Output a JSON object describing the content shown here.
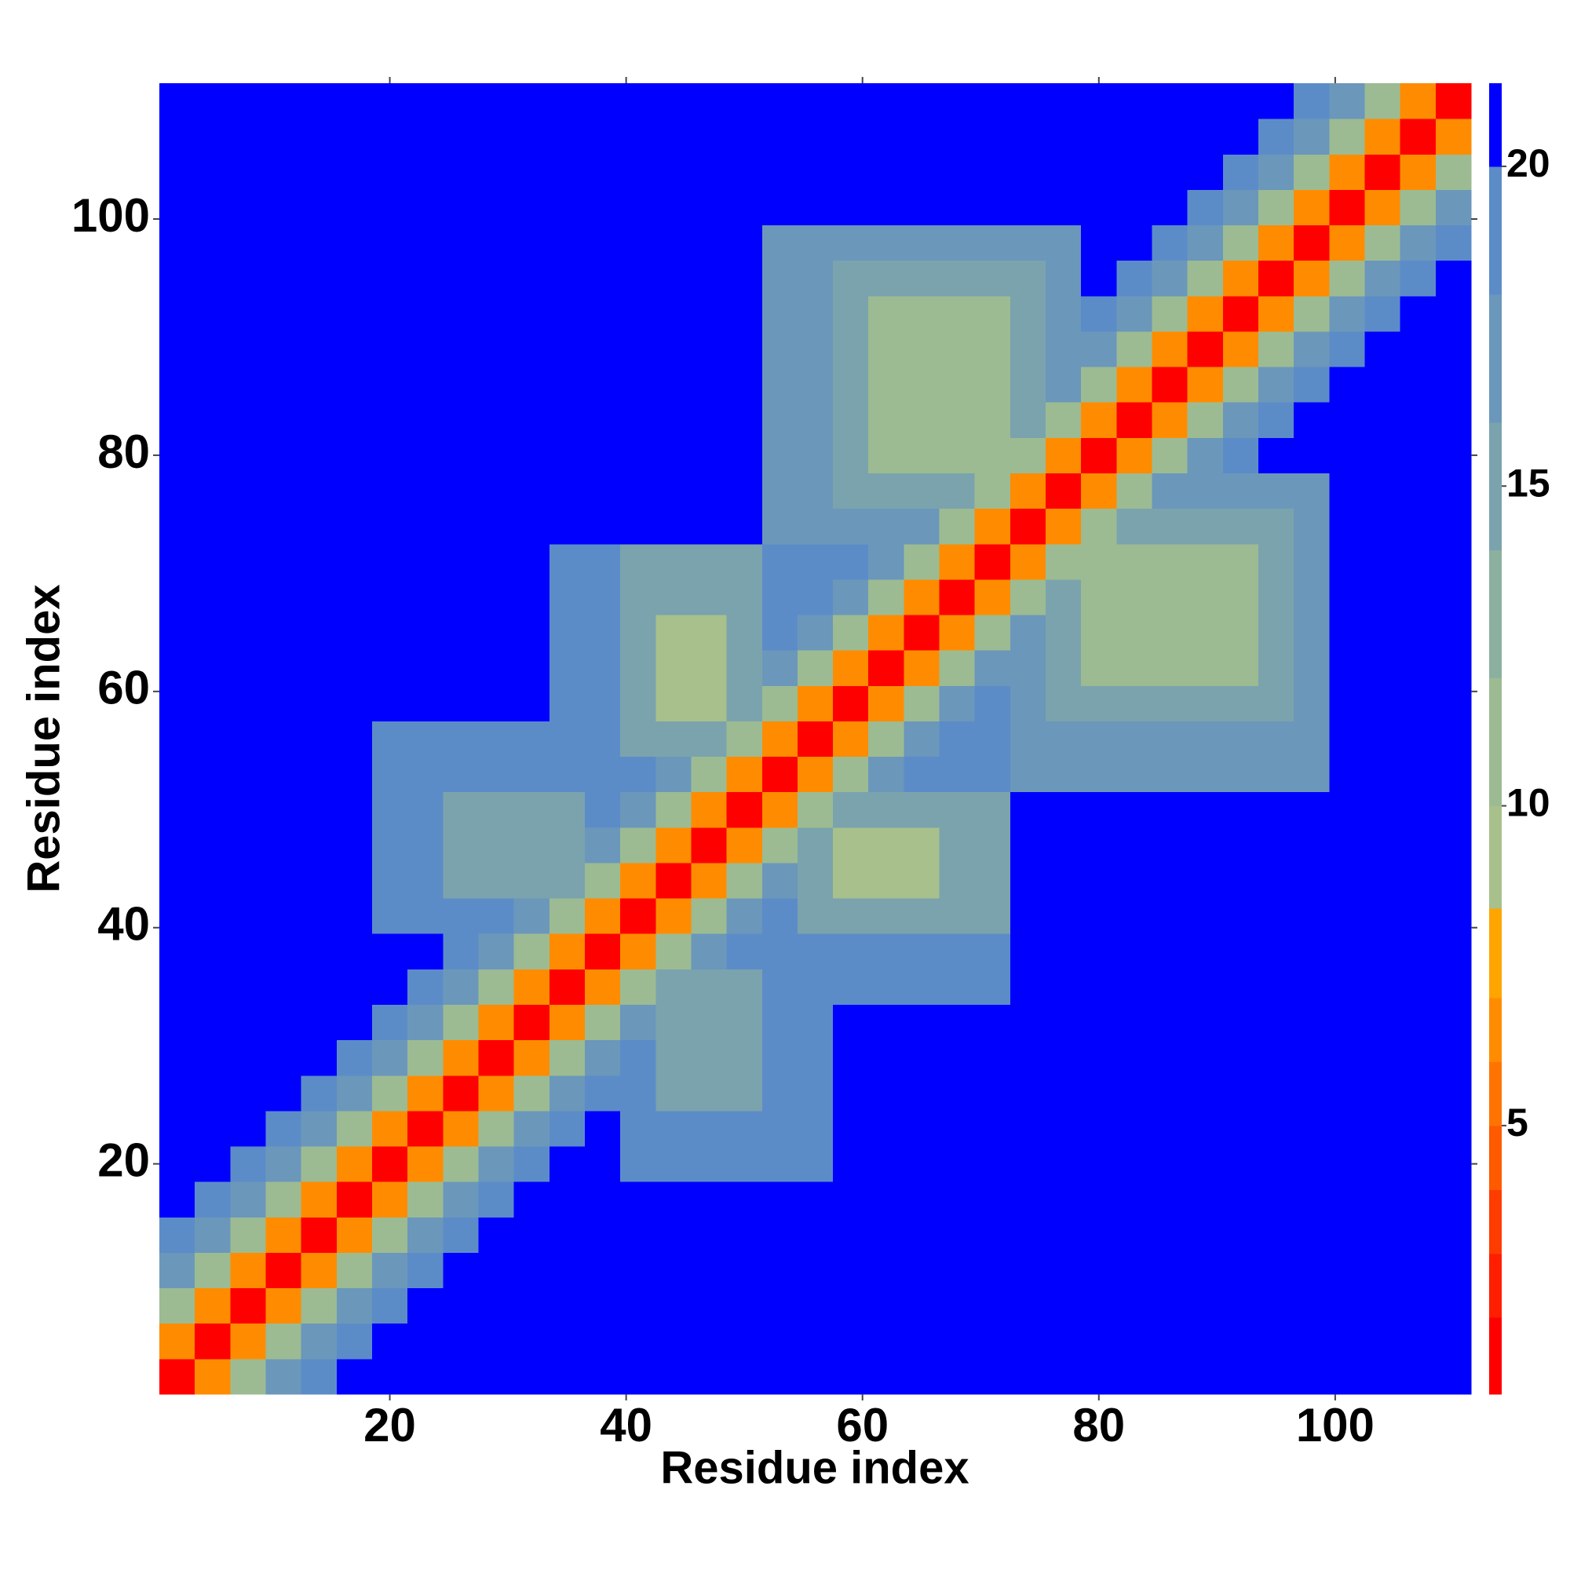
{
  "chart_data": {
    "type": "heatmap",
    "xlabel": "Residue index",
    "ylabel": "Residue index",
    "xlim": [
      0.5,
      111.5
    ],
    "ylim": [
      0.5,
      111.5
    ],
    "xticks": [
      20,
      40,
      60,
      80,
      100
    ],
    "yticks": [
      20,
      40,
      60,
      80,
      100
    ],
    "xbins": [
      0.5,
      3.5,
      6.5,
      9.5,
      12.5,
      15.5,
      18.5,
      21.5,
      24.5,
      27.5,
      30.5,
      33.5,
      36.5,
      39.5,
      42.5,
      45.5,
      48.5,
      51.5,
      54.5,
      57.5,
      60.5,
      63.5,
      66.5,
      69.5,
      72.5,
      75.5,
      78.5,
      81.5,
      84.5,
      87.5,
      90.5,
      93.5,
      96.5,
      99.5,
      102.5,
      105.5,
      108.5,
      111.5
    ],
    "ybins": [
      0.5,
      3.5,
      6.5,
      9.5,
      12.5,
      15.5,
      18.5,
      21.5,
      24.5,
      27.5,
      30.5,
      33.5,
      36.5,
      39.5,
      42.5,
      45.5,
      48.5,
      51.5,
      54.5,
      57.5,
      60.5,
      63.5,
      66.5,
      69.5,
      72.5,
      75.5,
      78.5,
      81.5,
      84.5,
      87.5,
      90.5,
      93.5,
      96.5,
      99.5,
      102.5,
      105.5,
      108.5,
      111.5
    ],
    "levels": [
      0.8,
      2,
      3,
      4,
      5,
      6,
      7,
      8.4,
      10,
      12,
      14,
      16,
      18,
      20,
      21.3
    ],
    "colors": [
      "#ff0000",
      "#ff1e00",
      "#ff3c00",
      "#ff5a00",
      "#ff7300",
      "#ff8c00",
      "#ffa500",
      "#a7c08c",
      "#9cbb93",
      "#8cb0a0",
      "#7ba3ad",
      "#6b97bb",
      "#5c8cc8",
      "#0000ff"
    ],
    "zticks": [
      5,
      10,
      15,
      20
    ],
    "z": [
      [
        1,
        6,
        11,
        16,
        19,
        21,
        21,
        21,
        21,
        21,
        21,
        21,
        21,
        21,
        21,
        21,
        21,
        21,
        21,
        21,
        21,
        21,
        21,
        21,
        21,
        21,
        21,
        21,
        21,
        21,
        21,
        21,
        21,
        21,
        21,
        21,
        21
      ],
      [
        6,
        1,
        6,
        11,
        16,
        19,
        21,
        21,
        21,
        21,
        21,
        21,
        21,
        21,
        21,
        21,
        21,
        21,
        21,
        21,
        21,
        21,
        21,
        21,
        21,
        21,
        21,
        21,
        21,
        21,
        21,
        21,
        21,
        21,
        21,
        21,
        21
      ],
      [
        11,
        6,
        1,
        6,
        11,
        16,
        19,
        21,
        21,
        21,
        21,
        21,
        21,
        21,
        21,
        21,
        21,
        21,
        21,
        21,
        21,
        21,
        21,
        21,
        21,
        21,
        21,
        21,
        21,
        21,
        21,
        21,
        21,
        21,
        21,
        21,
        21
      ],
      [
        16,
        11,
        6,
        1,
        6,
        11,
        16,
        19,
        21,
        21,
        21,
        21,
        21,
        21,
        21,
        21,
        21,
        21,
        21,
        21,
        21,
        21,
        21,
        21,
        21,
        21,
        21,
        21,
        21,
        21,
        21,
        21,
        21,
        21,
        21,
        21,
        21
      ],
      [
        19,
        16,
        11,
        6,
        1,
        6,
        11,
        16,
        19,
        21,
        21,
        21,
        21,
        21,
        21,
        21,
        21,
        21,
        21,
        21,
        21,
        21,
        21,
        21,
        21,
        21,
        21,
        21,
        21,
        21,
        21,
        21,
        21,
        21,
        21,
        21,
        21
      ],
      [
        21,
        19,
        16,
        11,
        6,
        1,
        6,
        11,
        16,
        19,
        21,
        21,
        21,
        21,
        21,
        21,
        21,
        21,
        21,
        21,
        21,
        21,
        21,
        21,
        21,
        21,
        21,
        21,
        21,
        21,
        21,
        21,
        21,
        21,
        21,
        21,
        21
      ],
      [
        21,
        21,
        19,
        16,
        11,
        6,
        1,
        6,
        11,
        16,
        19,
        21,
        21,
        18,
        18,
        18,
        18,
        18,
        18,
        21,
        21,
        21,
        21,
        21,
        21,
        21,
        21,
        21,
        21,
        21,
        21,
        21,
        21,
        21,
        21,
        21,
        21
      ],
      [
        21,
        21,
        21,
        19,
        16,
        11,
        6,
        1,
        6,
        11,
        16,
        19,
        21,
        18,
        18,
        18,
        18,
        18,
        18,
        21,
        21,
        21,
        21,
        21,
        21,
        21,
        21,
        21,
        21,
        21,
        21,
        21,
        21,
        21,
        21,
        21,
        21
      ],
      [
        21,
        21,
        21,
        21,
        19,
        16,
        11,
        6,
        1,
        6,
        11,
        16,
        19,
        18,
        15,
        15,
        15,
        18,
        18,
        21,
        21,
        21,
        21,
        21,
        21,
        21,
        21,
        21,
        21,
        21,
        21,
        21,
        21,
        21,
        21,
        21,
        21
      ],
      [
        21,
        21,
        21,
        21,
        21,
        19,
        16,
        11,
        6,
        1,
        6,
        11,
        16,
        18,
        15,
        15,
        15,
        18,
        18,
        21,
        21,
        21,
        21,
        21,
        21,
        21,
        21,
        21,
        21,
        21,
        21,
        21,
        21,
        21,
        21,
        21,
        21
      ],
      [
        21,
        21,
        21,
        21,
        21,
        21,
        19,
        16,
        11,
        6,
        1,
        6,
        11,
        16,
        15,
        15,
        15,
        18,
        18,
        21,
        21,
        21,
        21,
        21,
        21,
        21,
        21,
        21,
        21,
        21,
        21,
        21,
        21,
        21,
        21,
        21,
        21
      ],
      [
        21,
        21,
        21,
        21,
        21,
        21,
        21,
        19,
        16,
        11,
        6,
        1,
        6,
        11,
        15,
        15,
        15,
        18,
        18,
        18,
        18,
        18,
        18,
        18,
        21,
        21,
        21,
        21,
        21,
        21,
        21,
        21,
        21,
        21,
        21,
        21,
        21
      ],
      [
        21,
        21,
        21,
        21,
        21,
        21,
        21,
        21,
        19,
        16,
        11,
        6,
        1,
        6,
        11,
        16,
        18,
        18,
        18,
        18,
        18,
        18,
        18,
        18,
        21,
        21,
        21,
        21,
        21,
        21,
        21,
        21,
        21,
        21,
        21,
        21,
        21
      ],
      [
        21,
        21,
        21,
        21,
        21,
        21,
        18,
        18,
        18,
        18,
        16,
        11,
        6,
        1,
        6,
        11,
        16,
        18,
        14,
        14,
        14,
        14,
        14,
        14,
        21,
        21,
        21,
        21,
        21,
        21,
        21,
        21,
        21,
        21,
        21,
        21,
        21
      ],
      [
        21,
        21,
        21,
        21,
        21,
        21,
        18,
        18,
        15,
        15,
        15,
        15,
        11,
        6,
        1,
        6,
        11,
        16,
        14,
        9,
        9,
        9,
        14,
        14,
        21,
        21,
        21,
        21,
        21,
        21,
        21,
        21,
        21,
        21,
        21,
        21,
        21
      ],
      [
        21,
        21,
        21,
        21,
        21,
        21,
        18,
        18,
        15,
        15,
        15,
        15,
        16,
        11,
        6,
        1,
        6,
        11,
        14,
        9,
        9,
        9,
        14,
        14,
        21,
        21,
        21,
        21,
        21,
        21,
        21,
        21,
        21,
        21,
        21,
        21,
        21
      ],
      [
        21,
        21,
        21,
        21,
        21,
        21,
        18,
        18,
        15,
        15,
        15,
        15,
        18,
        16,
        11,
        6,
        1,
        6,
        11,
        14,
        14,
        14,
        14,
        14,
        21,
        21,
        21,
        21,
        21,
        21,
        21,
        21,
        21,
        21,
        21,
        21,
        21
      ],
      [
        21,
        21,
        21,
        21,
        21,
        21,
        18,
        18,
        18,
        18,
        18,
        18,
        18,
        18,
        16,
        11,
        6,
        1,
        6,
        11,
        16,
        18,
        18,
        18,
        17,
        17,
        17,
        17,
        17,
        17,
        17,
        17,
        17,
        21,
        21,
        21,
        21
      ],
      [
        21,
        21,
        21,
        21,
        21,
        21,
        18,
        18,
        18,
        18,
        18,
        18,
        18,
        14,
        14,
        14,
        11,
        6,
        1,
        6,
        11,
        16,
        18,
        18,
        17,
        17,
        17,
        17,
        17,
        17,
        17,
        17,
        17,
        21,
        21,
        21,
        21
      ],
      [
        21,
        21,
        21,
        21,
        21,
        21,
        21,
        21,
        21,
        21,
        21,
        18,
        18,
        14,
        9,
        9,
        14,
        11,
        6,
        1,
        6,
        11,
        16,
        19,
        17,
        14,
        14,
        14,
        14,
        14,
        14,
        14,
        17,
        21,
        21,
        21,
        21
      ],
      [
        21,
        21,
        21,
        21,
        21,
        21,
        21,
        21,
        21,
        21,
        21,
        18,
        18,
        14,
        9,
        9,
        14,
        16,
        11,
        6,
        1,
        6,
        11,
        16,
        17,
        14,
        10,
        10,
        10,
        10,
        10,
        14,
        17,
        21,
        21,
        21,
        21
      ],
      [
        21,
        21,
        21,
        21,
        21,
        21,
        21,
        21,
        21,
        21,
        21,
        18,
        18,
        14,
        9,
        9,
        14,
        18,
        16,
        11,
        6,
        1,
        6,
        11,
        16,
        14,
        10,
        10,
        10,
        10,
        10,
        14,
        17,
        21,
        21,
        21,
        21
      ],
      [
        21,
        21,
        21,
        21,
        21,
        21,
        21,
        21,
        21,
        21,
        21,
        18,
        18,
        14,
        14,
        14,
        14,
        18,
        18,
        16,
        11,
        6,
        1,
        6,
        11,
        14,
        10,
        10,
        10,
        10,
        10,
        14,
        17,
        21,
        21,
        21,
        21
      ],
      [
        21,
        21,
        21,
        21,
        21,
        21,
        21,
        21,
        21,
        21,
        21,
        18,
        18,
        14,
        14,
        14,
        14,
        18,
        18,
        19,
        16,
        11,
        6,
        1,
        6,
        11,
        10,
        10,
        10,
        10,
        10,
        14,
        17,
        21,
        21,
        21,
        21
      ],
      [
        21,
        21,
        21,
        21,
        21,
        21,
        21,
        21,
        21,
        21,
        21,
        21,
        21,
        21,
        21,
        21,
        21,
        17,
        17,
        17,
        17,
        16,
        11,
        6,
        1,
        6,
        11,
        14,
        14,
        14,
        14,
        14,
        17,
        21,
        21,
        21,
        21
      ],
      [
        21,
        21,
        21,
        21,
        21,
        21,
        21,
        21,
        21,
        21,
        21,
        21,
        21,
        21,
        21,
        21,
        21,
        17,
        17,
        14,
        14,
        14,
        14,
        11,
        6,
        1,
        6,
        11,
        16,
        17,
        17,
        17,
        17,
        21,
        21,
        21,
        21
      ],
      [
        21,
        21,
        21,
        21,
        21,
        21,
        21,
        21,
        21,
        21,
        21,
        21,
        21,
        21,
        21,
        21,
        21,
        17,
        17,
        14,
        10,
        10,
        10,
        10,
        11,
        6,
        1,
        6,
        11,
        16,
        19,
        21,
        21,
        21,
        21,
        21,
        21
      ],
      [
        21,
        21,
        21,
        21,
        21,
        21,
        21,
        21,
        21,
        21,
        21,
        21,
        21,
        21,
        21,
        21,
        21,
        17,
        17,
        14,
        10,
        10,
        10,
        10,
        14,
        11,
        6,
        1,
        6,
        11,
        16,
        19,
        21,
        21,
        21,
        21,
        21
      ],
      [
        21,
        21,
        21,
        21,
        21,
        21,
        21,
        21,
        21,
        21,
        21,
        21,
        21,
        21,
        21,
        21,
        21,
        17,
        17,
        14,
        10,
        10,
        10,
        10,
        14,
        16,
        11,
        6,
        1,
        6,
        11,
        16,
        19,
        21,
        21,
        21,
        21
      ],
      [
        21,
        21,
        21,
        21,
        21,
        21,
        21,
        21,
        21,
        21,
        21,
        21,
        21,
        21,
        21,
        21,
        21,
        17,
        17,
        14,
        10,
        10,
        10,
        10,
        14,
        17,
        16,
        11,
        6,
        1,
        6,
        11,
        16,
        19,
        21,
        21,
        21
      ],
      [
        21,
        21,
        21,
        21,
        21,
        21,
        21,
        21,
        21,
        21,
        21,
        21,
        21,
        21,
        21,
        21,
        21,
        17,
        17,
        14,
        10,
        10,
        10,
        10,
        14,
        17,
        19,
        16,
        11,
        6,
        1,
        6,
        11,
        16,
        19,
        21,
        21
      ],
      [
        21,
        21,
        21,
        21,
        21,
        21,
        21,
        21,
        21,
        21,
        21,
        21,
        21,
        21,
        21,
        21,
        21,
        17,
        17,
        14,
        14,
        14,
        14,
        14,
        14,
        17,
        21,
        19,
        16,
        11,
        6,
        1,
        6,
        11,
        16,
        19,
        21
      ],
      [
        21,
        21,
        21,
        21,
        21,
        21,
        21,
        21,
        21,
        21,
        21,
        21,
        21,
        21,
        21,
        21,
        21,
        17,
        17,
        17,
        17,
        17,
        17,
        17,
        17,
        17,
        21,
        21,
        19,
        16,
        11,
        6,
        1,
        6,
        11,
        16,
        19
      ],
      [
        21,
        21,
        21,
        21,
        21,
        21,
        21,
        21,
        21,
        21,
        21,
        21,
        21,
        21,
        21,
        21,
        21,
        21,
        21,
        21,
        21,
        21,
        21,
        21,
        21,
        21,
        21,
        21,
        21,
        19,
        16,
        11,
        6,
        1,
        6,
        11,
        16
      ],
      [
        21,
        21,
        21,
        21,
        21,
        21,
        21,
        21,
        21,
        21,
        21,
        21,
        21,
        21,
        21,
        21,
        21,
        21,
        21,
        21,
        21,
        21,
        21,
        21,
        21,
        21,
        21,
        21,
        21,
        21,
        19,
        16,
        11,
        6,
        1,
        6,
        11
      ],
      [
        21,
        21,
        21,
        21,
        21,
        21,
        21,
        21,
        21,
        21,
        21,
        21,
        21,
        21,
        21,
        21,
        21,
        21,
        21,
        21,
        21,
        21,
        21,
        21,
        21,
        21,
        21,
        21,
        21,
        21,
        21,
        19,
        16,
        11,
        6,
        1,
        6
      ],
      [
        21,
        21,
        21,
        21,
        21,
        21,
        21,
        21,
        21,
        21,
        21,
        21,
        21,
        21,
        21,
        21,
        21,
        21,
        21,
        21,
        21,
        21,
        21,
        21,
        21,
        21,
        21,
        21,
        21,
        21,
        21,
        21,
        19,
        16,
        11,
        6,
        1
      ]
    ]
  }
}
